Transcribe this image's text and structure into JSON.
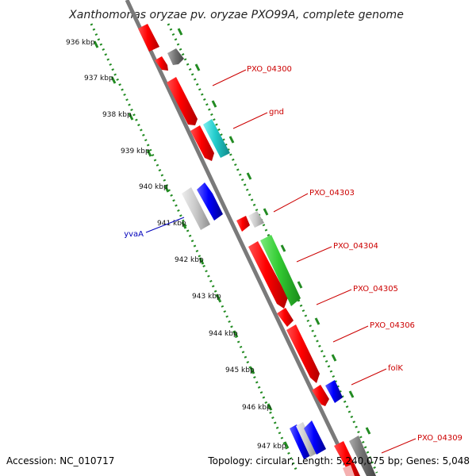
{
  "title": "Xanthomonas oryzae pv. oryzae PXO99A, complete genome",
  "accession": "Accession: NC_010717",
  "topology": "Topology: circular; Length: 5,240,075 bp; Genes: 5,048",
  "colors": {
    "backbone": "#7a7a7a",
    "tick": "#228b22",
    "label_forward": "#cc0000",
    "label_reverse": "#0000bb"
  },
  "ticks": [
    "936 kbp",
    "937 kbp",
    "938 kbp",
    "939 kbp",
    "940 kbp",
    "941 kbp",
    "942 kbp",
    "943 kbp",
    "944 kbp",
    "945 kbp",
    "946 kbp",
    "947 kbp"
  ],
  "labels": {
    "pxo_04300": "PXO_04300",
    "gnd": "gnd",
    "pxo_04303": "PXO_04303",
    "pxo_04304": "PXO_04304",
    "pxo_04305": "PXO_04305",
    "pxo_04306": "PXO_04306",
    "folk": "folK",
    "pxo_04309": "PXO_04309",
    "yvaa": "yvaA"
  }
}
